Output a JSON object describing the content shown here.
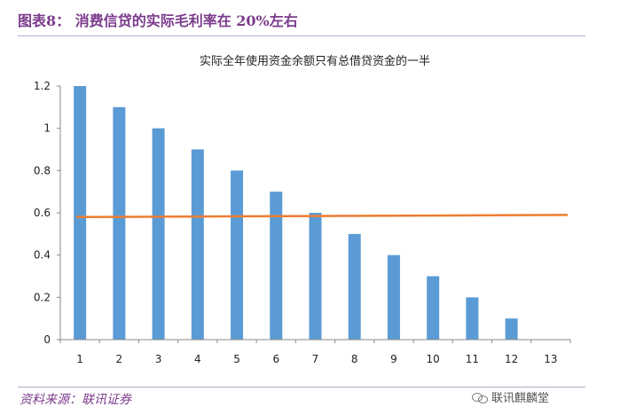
{
  "header": {
    "figure_title": "图表8： 消费信贷的实际毛利率在 20%左右"
  },
  "footer": {
    "source": "资料来源：联讯证券",
    "watermark": "联讯麒麟堂"
  },
  "colors": {
    "bar": "#5b9bd5",
    "line": "#ed7d31",
    "axis": "#888888",
    "accent": "#7b3b8c"
  },
  "chart_data": {
    "type": "bar",
    "title": "实际全年使用资金余额只有总借贷资金的一半",
    "categories": [
      "1",
      "2",
      "3",
      "4",
      "5",
      "6",
      "7",
      "8",
      "9",
      "10",
      "11",
      "12",
      "13"
    ],
    "series": [
      {
        "type": "bar",
        "values": [
          1.2,
          1.1,
          1.0,
          0.9,
          0.8,
          0.7,
          0.6,
          0.5,
          0.4,
          0.3,
          0.2,
          0.1,
          0
        ]
      },
      {
        "type": "line",
        "start": 0.58,
        "end": 0.59
      }
    ],
    "ylim": [
      0,
      1.2
    ],
    "yticks": [
      "0",
      "0.2",
      "0.4",
      "0.6",
      "0.8",
      "1",
      "1.2"
    ],
    "ytick_values": [
      0,
      0.2,
      0.4,
      0.6,
      0.8,
      1.0,
      1.2
    ],
    "grid": false,
    "legend": "none"
  }
}
